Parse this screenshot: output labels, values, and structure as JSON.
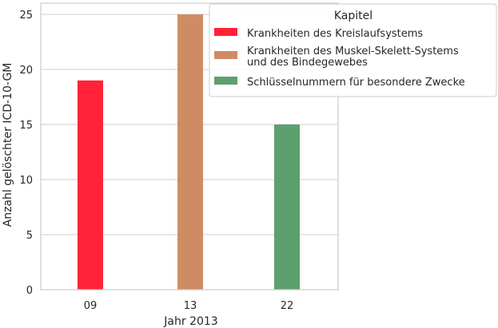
{
  "chart_data": {
    "type": "bar",
    "categories": [
      "09",
      "13",
      "22"
    ],
    "values": [
      19,
      25,
      15
    ],
    "xlabel": "Jahr 2013",
    "ylabel": "Anzahl gelöschter ICD-10-GM",
    "ylim": [
      0,
      25
    ],
    "yticks": [
      "0",
      "5",
      "10",
      "15",
      "20",
      "25"
    ],
    "grid": true,
    "legend": {
      "title": "Kapitel",
      "placement": "top-right",
      "entries": [
        {
          "lines": [
            "Krankheiten des Kreislaufsystems"
          ],
          "color": "#ff2238"
        },
        {
          "lines": [
            "Krankheiten des Muskel-Skelett-Systems",
            " und des Bindegewebes"
          ],
          "color": "#cf8c64"
        },
        {
          "lines": [
            "Schlüsselnummern für besondere Zwecke"
          ],
          "color": "#5e9f6e"
        }
      ]
    }
  }
}
